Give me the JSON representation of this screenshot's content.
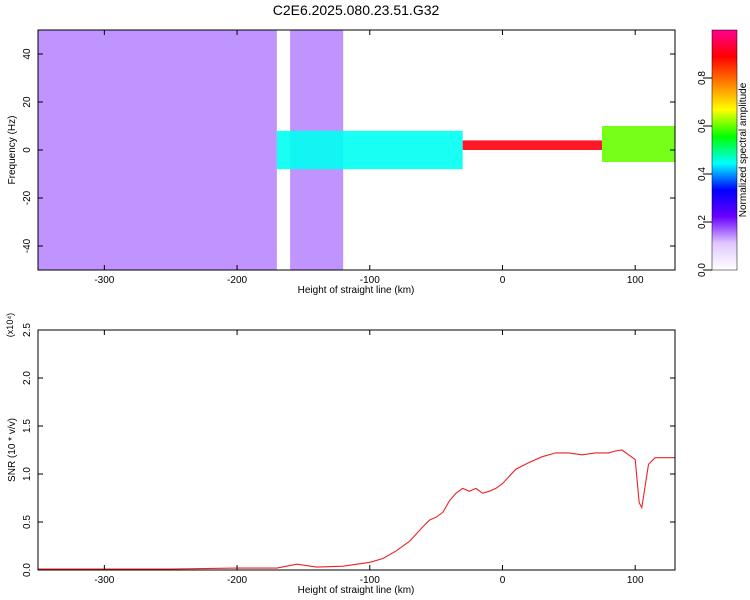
{
  "figure": {
    "title": "C2E6.2025.080.23.51.G32"
  },
  "chart_data": [
    {
      "type": "heatmap",
      "xlabel": "Height of straight line (km)",
      "ylabel": "Frequency (Hz)",
      "xlim": [
        -350,
        130
      ],
      "ylim": [
        -50,
        50
      ],
      "x_ticks": [
        "-300",
        "-200",
        "-100",
        "0",
        "100"
      ],
      "x_tick_values": [
        -300,
        -200,
        -100,
        0,
        100
      ],
      "y_ticks": [
        "-40",
        "-20",
        "0",
        "20",
        "40"
      ],
      "y_tick_values": [
        -40,
        -20,
        0,
        20,
        40
      ],
      "colorbar": {
        "label": "Normalized spectral amplitude",
        "range": [
          0,
          1
        ],
        "ticks": [
          "0.0",
          "0.2",
          "0.4",
          "0.6",
          "0.8"
        ],
        "tick_values": [
          0.0,
          0.2,
          0.4,
          0.6,
          0.8
        ],
        "colors": [
          "#ffffff",
          "#e0c8ff",
          "#6a00ff",
          "#0000ff",
          "#00ffff",
          "#00ff00",
          "#ffff00",
          "#ff8000",
          "#ff0000",
          "#ff0090"
        ]
      },
      "regions": [
        {
          "x_range": [
            -350,
            -170
          ],
          "freq_range": [
            -50,
            50
          ],
          "amplitude": 0.05,
          "pattern": "scattered broadband noise"
        },
        {
          "x_range": [
            -160,
            -120
          ],
          "freq_range": [
            -50,
            50
          ],
          "amplitude": 0.05,
          "pattern": "scattered broadband noise"
        },
        {
          "x_range": [
            -170,
            -30
          ],
          "freq_range": [
            -8,
            8
          ],
          "amplitude": 0.45,
          "pattern": "concentrated band near 0 Hz"
        },
        {
          "x_range": [
            -30,
            75
          ],
          "freq_range": [
            0,
            4
          ],
          "amplitude": 0.9,
          "pattern": "narrow band near 2 Hz"
        },
        {
          "x_range": [
            75,
            130
          ],
          "freq_range": [
            -5,
            10
          ],
          "amplitude": 0.6,
          "pattern": "band near 2 Hz with bursts"
        }
      ]
    },
    {
      "type": "line",
      "xlabel": "Height of straight line (km)",
      "ylabel": "SNR (10 * v/v)",
      "y_multiplier_label": "(x10⁴)",
      "xlim": [
        -350,
        130
      ],
      "ylim": [
        0,
        2.5
      ],
      "x_ticks": [
        "-300",
        "-200",
        "-100",
        "0",
        "100"
      ],
      "x_tick_values": [
        -300,
        -200,
        -100,
        0,
        100
      ],
      "y_ticks": [
        "0.0",
        "0.5",
        "1.0",
        "1.5",
        "2.0",
        "2.5"
      ],
      "y_tick_values": [
        0.0,
        0.5,
        1.0,
        1.5,
        2.0,
        2.5
      ],
      "series": [
        {
          "color": "#ee2222",
          "x": [
            -350,
            -300,
            -250,
            -200,
            -170,
            -155,
            -140,
            -120,
            -100,
            -90,
            -80,
            -70,
            -60,
            -55,
            -50,
            -45,
            -40,
            -35,
            -30,
            -25,
            -20,
            -15,
            -10,
            -5,
            0,
            10,
            20,
            30,
            40,
            50,
            60,
            70,
            80,
            85,
            90,
            95,
            100,
            103,
            105,
            110,
            115,
            130
          ],
          "y": [
            0.01,
            0.01,
            0.01,
            0.02,
            0.02,
            0.06,
            0.03,
            0.04,
            0.08,
            0.12,
            0.2,
            0.3,
            0.45,
            0.52,
            0.55,
            0.6,
            0.72,
            0.8,
            0.85,
            0.82,
            0.85,
            0.8,
            0.82,
            0.85,
            0.9,
            1.05,
            1.12,
            1.18,
            1.22,
            1.22,
            1.2,
            1.22,
            1.22,
            1.24,
            1.25,
            1.2,
            1.15,
            0.7,
            0.65,
            1.1,
            1.17,
            1.17
          ]
        }
      ]
    }
  ]
}
